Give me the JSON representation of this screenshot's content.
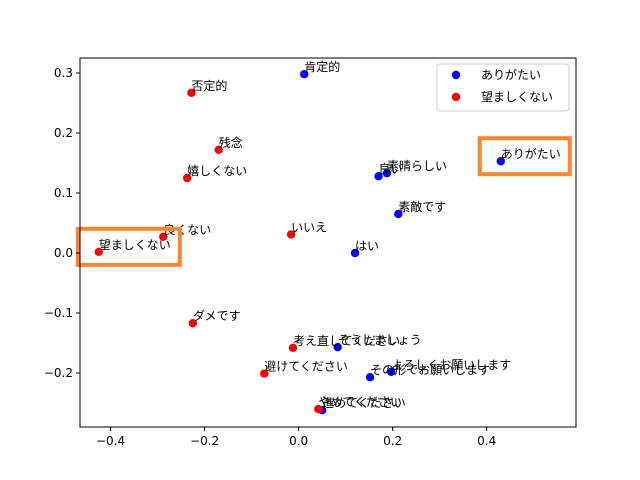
{
  "chart_data": {
    "type": "scatter",
    "xlim": [
      -0.465,
      0.59
    ],
    "ylim": [
      -0.29,
      0.325
    ],
    "xticks": [
      -0.4,
      -0.2,
      0.0,
      0.2,
      0.4
    ],
    "yticks": [
      -0.2,
      -0.1,
      0.0,
      0.1,
      0.2,
      0.3
    ],
    "xtick_labels": [
      "−0.4",
      "−0.2",
      "0.0",
      "0.2",
      "0.4"
    ],
    "ytick_labels": [
      "−0.2",
      "−0.1",
      "0.0",
      "0.1",
      "0.2",
      "0.3"
    ],
    "legend_position": "top-right",
    "series": [
      {
        "name": "ありがたい",
        "color": "#0000ff",
        "points": [
          {
            "x": 0.43,
            "y": 0.153,
            "label": "ありがたい"
          },
          {
            "x": 0.012,
            "y": 0.298,
            "label": "肯定的"
          },
          {
            "x": 0.17,
            "y": 0.128,
            "label": "良い"
          },
          {
            "x": 0.188,
            "y": 0.133,
            "label": "素晴らしい"
          },
          {
            "x": 0.212,
            "y": 0.065,
            "label": "素敵です"
          },
          {
            "x": 0.12,
            "y": 0.0,
            "label": "はい"
          },
          {
            "x": 0.083,
            "y": -0.157,
            "label": "そうしましょう"
          },
          {
            "x": 0.197,
            "y": -0.198,
            "label": "よろしくお願いします"
          },
          {
            "x": 0.152,
            "y": -0.207,
            "label": "その形でお願いします"
          },
          {
            "x": 0.05,
            "y": -0.262,
            "label": "進めてください"
          }
        ]
      },
      {
        "name": "望ましくない",
        "color": "#ff0000",
        "points": [
          {
            "x": -0.425,
            "y": 0.002,
            "label": "望ましくない"
          },
          {
            "x": -0.228,
            "y": 0.267,
            "label": "否定的"
          },
          {
            "x": -0.17,
            "y": 0.172,
            "label": "残念"
          },
          {
            "x": -0.237,
            "y": 0.125,
            "label": "嬉しくない"
          },
          {
            "x": -0.288,
            "y": 0.027,
            "label": "良くない"
          },
          {
            "x": -0.016,
            "y": 0.031,
            "label": "いいえ"
          },
          {
            "x": -0.225,
            "y": -0.117,
            "label": "ダメです"
          },
          {
            "x": -0.012,
            "y": -0.158,
            "label": "考え直してください"
          },
          {
            "x": -0.073,
            "y": -0.201,
            "label": "避けてください"
          },
          {
            "x": 0.042,
            "y": -0.26,
            "label": "やめてください"
          }
        ]
      }
    ]
  },
  "colors": {
    "highlight": "#ff8533"
  },
  "highlights": [
    "ありがたい",
    "望ましくない"
  ]
}
